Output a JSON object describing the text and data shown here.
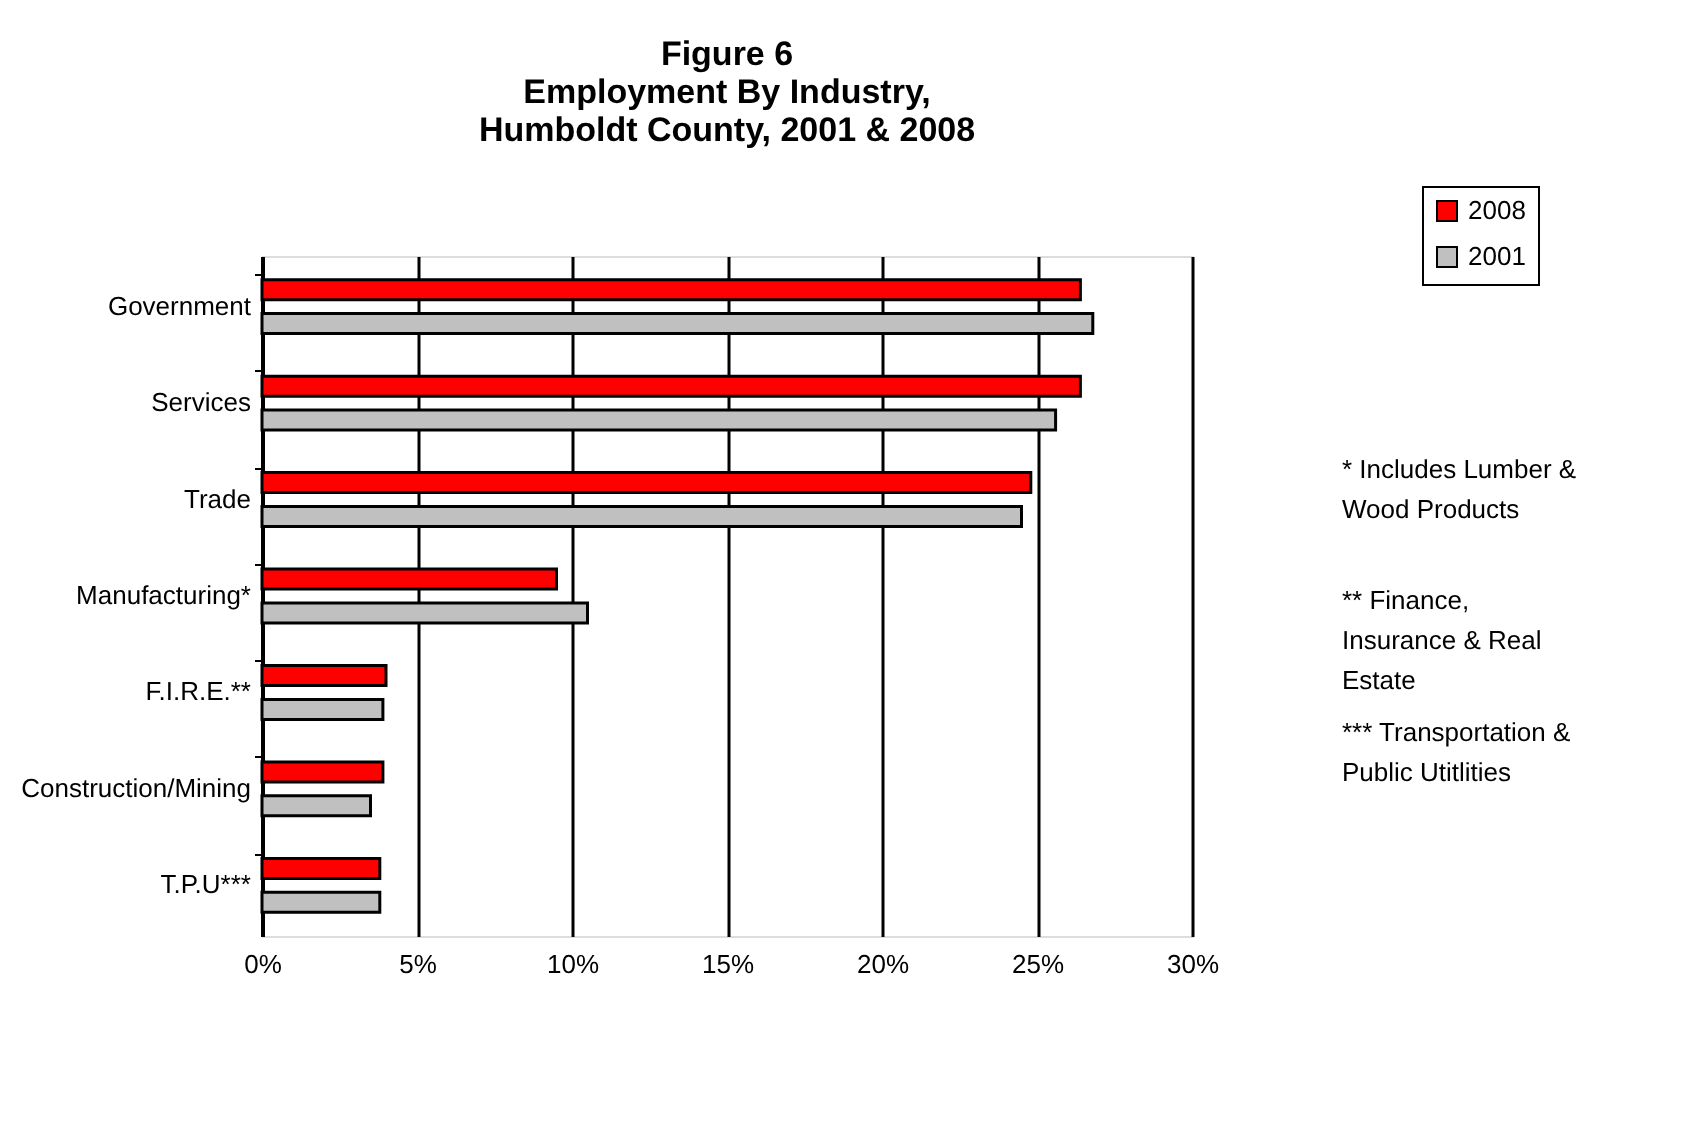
{
  "chart_data": {
    "type": "bar",
    "orientation": "horizontal",
    "title": "Figure 6\nEmployment By Industry,\nHumboldt County, 2001 & 2008",
    "categories": [
      "Government",
      "Services",
      "Trade",
      "Manufacturing*",
      "F.I.R.E.**",
      "Construction/Mining",
      "T.P.U***"
    ],
    "series": [
      {
        "name": "2008",
        "color": "#ff0000",
        "values": [
          26.4,
          26.4,
          24.8,
          9.5,
          4.0,
          3.9,
          3.8
        ]
      },
      {
        "name": "2001",
        "color": "#c0c0c0",
        "values": [
          26.8,
          25.6,
          24.5,
          10.5,
          3.9,
          3.5,
          3.8
        ]
      }
    ],
    "xlim": [
      0,
      30
    ],
    "xticks": [
      {
        "value": 0,
        "label": "0%"
      },
      {
        "value": 5,
        "label": "5%"
      },
      {
        "value": 10,
        "label": "10%"
      },
      {
        "value": 15,
        "label": "15%"
      },
      {
        "value": 20,
        "label": "20%"
      },
      {
        "value": 25,
        "label": "25%"
      },
      {
        "value": 30,
        "label": "30%"
      }
    ],
    "grid": "x",
    "legend": "top right",
    "annotations": [
      "* Includes Lumber & Wood Products",
      "** Finance, Insurance & Real Estate",
      "*** Transportation & Public Utitlities"
    ]
  }
}
